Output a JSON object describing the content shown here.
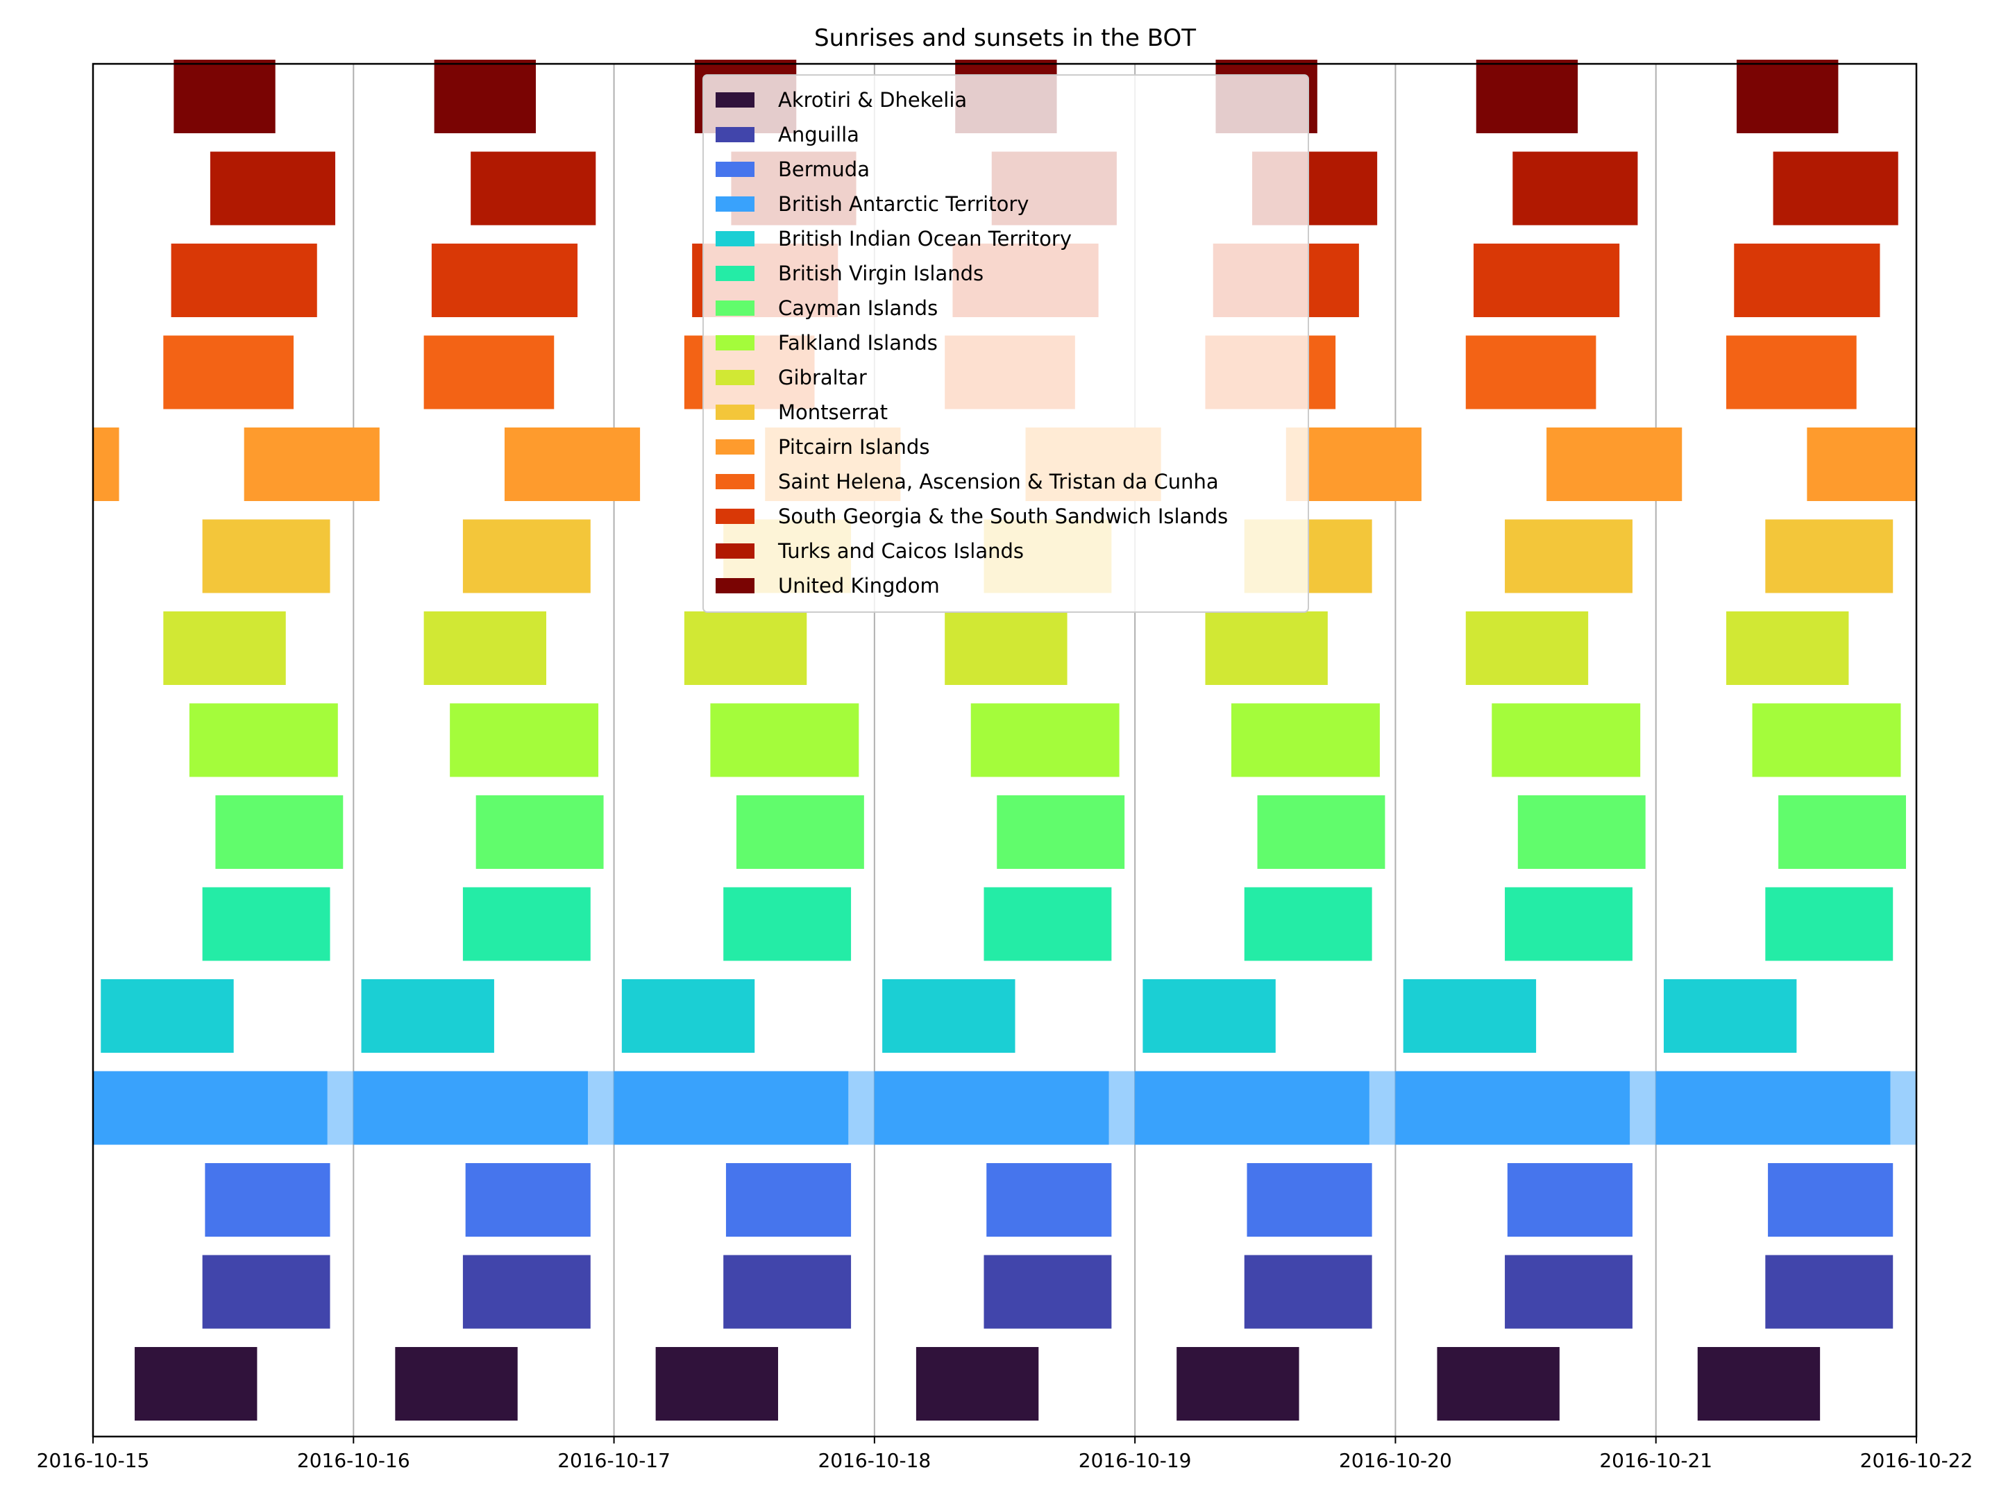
{
  "chart_data": {
    "type": "bar",
    "subtype": "horizontal-timeline",
    "title": "Sunrises and sunsets in the BOT",
    "xlabel": "",
    "ylabel": "",
    "x_ticks": [
      "2016-10-15",
      "2016-10-16",
      "2016-10-17",
      "2016-10-18",
      "2016-10-19",
      "2016-10-20",
      "2016-10-21",
      "2016-10-22"
    ],
    "x_range_days": [
      0,
      7
    ],
    "grid": "vertical",
    "legend_position": "top-center",
    "twilight_opacity": 0.5,
    "series": [
      {
        "name": "Akrotiri & Dhekelia",
        "color": "#30123b",
        "days": [
          [
            0.16,
            0.63
          ],
          [
            1.16,
            1.63
          ],
          [
            2.16,
            2.63
          ],
          [
            3.16,
            3.63
          ],
          [
            4.16,
            4.63
          ],
          [
            5.16,
            5.63
          ],
          [
            6.16,
            6.63
          ]
        ]
      },
      {
        "name": "Anguilla",
        "color": "#4145ab",
        "days": [
          [
            0.42,
            0.91
          ],
          [
            1.42,
            1.91
          ],
          [
            2.42,
            2.91
          ],
          [
            3.42,
            3.91
          ],
          [
            4.42,
            4.91
          ],
          [
            5.42,
            5.91
          ],
          [
            6.42,
            6.91
          ]
        ]
      },
      {
        "name": "Bermuda",
        "color": "#4675ed",
        "days": [
          [
            0.43,
            0.91
          ],
          [
            1.43,
            1.91
          ],
          [
            2.43,
            2.91
          ],
          [
            3.43,
            3.91
          ],
          [
            4.43,
            4.91
          ],
          [
            5.43,
            5.91
          ],
          [
            6.43,
            6.91
          ]
        ]
      },
      {
        "name": "British Antarctic Territory",
        "color": "#39a2fc",
        "days": [
          [
            0.0,
            0.9
          ],
          [
            1.0,
            1.9
          ],
          [
            2.0,
            2.9
          ],
          [
            3.0,
            3.9
          ],
          [
            4.0,
            4.9
          ],
          [
            5.0,
            5.9
          ],
          [
            6.0,
            6.9
          ]
        ],
        "twilight": [
          [
            0.0,
            0.15
          ],
          [
            0.9,
            1.15
          ],
          [
            1.9,
            2.15
          ],
          [
            2.9,
            3.15
          ],
          [
            3.9,
            4.15
          ],
          [
            4.9,
            5.15
          ],
          [
            5.9,
            6.15
          ],
          [
            6.9,
            7.0
          ]
        ]
      },
      {
        "name": "British Indian Ocean Territory",
        "color": "#1bcfd4",
        "days": [
          [
            0.03,
            0.54
          ],
          [
            1.03,
            1.54
          ],
          [
            2.03,
            2.54
          ],
          [
            3.03,
            3.54
          ],
          [
            4.03,
            4.54
          ],
          [
            5.03,
            5.54
          ],
          [
            6.03,
            6.54
          ]
        ]
      },
      {
        "name": "British Virgin Islands",
        "color": "#24eca6",
        "days": [
          [
            0.42,
            0.91
          ],
          [
            1.42,
            1.91
          ],
          [
            2.42,
            2.91
          ],
          [
            3.42,
            3.91
          ],
          [
            4.42,
            4.91
          ],
          [
            5.42,
            5.91
          ],
          [
            6.42,
            6.91
          ]
        ]
      },
      {
        "name": "Cayman Islands",
        "color": "#61fc6c",
        "days": [
          [
            0.47,
            0.96
          ],
          [
            1.47,
            1.96
          ],
          [
            2.47,
            2.96
          ],
          [
            3.47,
            3.96
          ],
          [
            4.47,
            4.96
          ],
          [
            5.47,
            5.96
          ],
          [
            6.47,
            6.96
          ]
        ]
      },
      {
        "name": "Falkland Islands",
        "color": "#a4fc3b",
        "days": [
          [
            0.37,
            0.94
          ],
          [
            1.37,
            1.94
          ],
          [
            2.37,
            2.94
          ],
          [
            3.37,
            3.94
          ],
          [
            4.37,
            4.94
          ],
          [
            5.37,
            5.94
          ],
          [
            6.37,
            6.94
          ]
        ]
      },
      {
        "name": "Gibraltar",
        "color": "#d1e834",
        "days": [
          [
            0.27,
            0.74
          ],
          [
            1.27,
            1.74
          ],
          [
            2.27,
            2.74
          ],
          [
            3.27,
            3.74
          ],
          [
            4.27,
            4.74
          ],
          [
            5.27,
            5.74
          ],
          [
            6.27,
            6.74
          ]
        ]
      },
      {
        "name": "Montserrat",
        "color": "#f3c63a",
        "days": [
          [
            0.42,
            0.91
          ],
          [
            1.42,
            1.91
          ],
          [
            2.42,
            2.91
          ],
          [
            3.42,
            3.91
          ],
          [
            4.42,
            4.91
          ],
          [
            5.42,
            5.91
          ],
          [
            6.42,
            6.91
          ]
        ]
      },
      {
        "name": "Pitcairn Islands",
        "color": "#fe9b2d",
        "days": [
          [
            0.0,
            0.1
          ],
          [
            0.58,
            1.1
          ],
          [
            1.58,
            2.1
          ],
          [
            2.58,
            3.1
          ],
          [
            3.58,
            4.1
          ],
          [
            4.58,
            5.1
          ],
          [
            5.58,
            6.1
          ],
          [
            6.58,
            7.0
          ]
        ]
      },
      {
        "name": "Saint Helena, Ascension & Tristan da Cunha",
        "color": "#f36315",
        "days": [
          [
            0.27,
            0.77
          ],
          [
            1.27,
            1.77
          ],
          [
            2.27,
            2.77
          ],
          [
            3.27,
            3.77
          ],
          [
            4.27,
            4.77
          ],
          [
            5.27,
            5.77
          ],
          [
            6.27,
            6.77
          ]
        ]
      },
      {
        "name": "South Georgia & the South Sandwich Islands",
        "color": "#d93806",
        "days": [
          [
            0.3,
            0.86
          ],
          [
            1.3,
            1.86
          ],
          [
            2.3,
            2.86
          ],
          [
            3.3,
            3.86
          ],
          [
            4.3,
            4.86
          ],
          [
            5.3,
            5.86
          ],
          [
            6.3,
            6.86
          ]
        ]
      },
      {
        "name": "Turks and Caicos Islands",
        "color": "#b11901",
        "days": [
          [
            0.45,
            0.93
          ],
          [
            1.45,
            1.93
          ],
          [
            2.45,
            2.93
          ],
          [
            3.45,
            3.93
          ],
          [
            4.45,
            4.93
          ],
          [
            5.45,
            5.93
          ],
          [
            6.45,
            6.93
          ]
        ]
      },
      {
        "name": "United Kingdom",
        "color": "#7a0403",
        "days": [
          [
            0.31,
            0.7
          ],
          [
            1.31,
            1.7
          ],
          [
            2.31,
            2.7
          ],
          [
            3.31,
            3.7
          ],
          [
            4.31,
            4.7
          ],
          [
            5.31,
            5.7
          ],
          [
            6.31,
            6.7
          ]
        ]
      }
    ]
  }
}
